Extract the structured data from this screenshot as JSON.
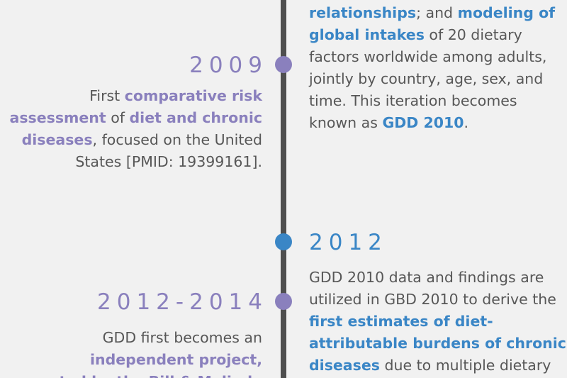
{
  "colors": {
    "purple": "#8a80bd",
    "blue": "#3a86c6",
    "line": "#4e4e4e",
    "text": "#575757",
    "background": "#f1f1f1"
  },
  "right_top": {
    "lines": [
      [
        {
          "t": "relationships",
          "hl": "blue"
        },
        {
          "t": "; and "
        },
        {
          "t": "modeling of",
          "hl": "blue"
        }
      ],
      [
        {
          "t": "global intakes",
          "hl": "blue"
        },
        {
          "t": " of 20 dietary"
        }
      ],
      [
        {
          "t": "factors worldwide among adults,"
        }
      ],
      [
        {
          "t": "jointly by country, age, sex, and"
        }
      ],
      [
        {
          "t": "time. This iteration becomes"
        }
      ],
      [
        {
          "t": "known as "
        },
        {
          "t": "GDD 2010",
          "hl": "blue"
        },
        {
          "t": "."
        }
      ]
    ]
  },
  "event_2009": {
    "year": "2009",
    "lines": [
      [
        {
          "t": "First "
        },
        {
          "t": "comparative risk",
          "hl": "purple"
        }
      ],
      [
        {
          "t": "assessment",
          "hl": "purple"
        },
        {
          "t": " of "
        },
        {
          "t": "diet and chronic",
          "hl": "purple"
        }
      ],
      [
        {
          "t": "diseases",
          "hl": "purple"
        },
        {
          "t": ", focused on the United"
        }
      ],
      [
        {
          "t": "States [PMID: 19399161]."
        }
      ]
    ]
  },
  "event_2012": {
    "year": "2012",
    "lines": [
      [
        {
          "t": "GDD 2010 data and findings are"
        }
      ],
      [
        {
          "t": "utilized in GBD 2010 to derive the"
        }
      ],
      [
        {
          "t": "first estimates of diet-",
          "hl": "blue"
        }
      ],
      [
        {
          "t": "attributable burdens of chronic",
          "hl": "blue"
        }
      ],
      [
        {
          "t": "diseases",
          "hl": "blue"
        },
        {
          "t": " due to multiple dietary"
        }
      ]
    ]
  },
  "event_2012_2014": {
    "year": "2012-2014",
    "lines": [
      [
        {
          "t": "GDD first becomes an"
        }
      ],
      [
        {
          "t": "independent project,",
          "hl": "purple"
        }
      ],
      [
        {
          "t": "supported by the Bill & Melinda",
          "hl": "purple"
        }
      ]
    ]
  }
}
